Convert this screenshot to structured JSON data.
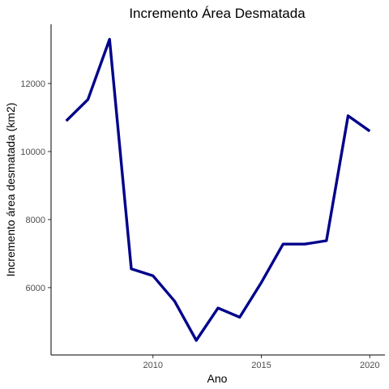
{
  "chart_data": {
    "type": "line",
    "title": "Incremento Área Desmatada",
    "xlabel": "Ano",
    "ylabel": "Incremento área desmatada (km2)",
    "x": [
      2006,
      2007,
      2008,
      2009,
      2010,
      2011,
      2012,
      2013,
      2014,
      2015,
      2016,
      2017,
      2018,
      2019,
      2020
    ],
    "series": [
      {
        "values": [
          10900,
          11530,
          13300,
          6550,
          6350,
          5600,
          4450,
          5400,
          5130,
          6150,
          7280,
          7280,
          7380,
          11050,
          10600
        ],
        "color": "#00008B"
      }
    ],
    "xlim": [
      2005.3,
      2020.7
    ],
    "ylim": [
      4020,
      13740
    ],
    "xticks": [
      "2010",
      "2015",
      "2020"
    ],
    "yticks": [
      "6000",
      "8000",
      "10000",
      "12000"
    ],
    "grid": false,
    "legend": "none"
  }
}
